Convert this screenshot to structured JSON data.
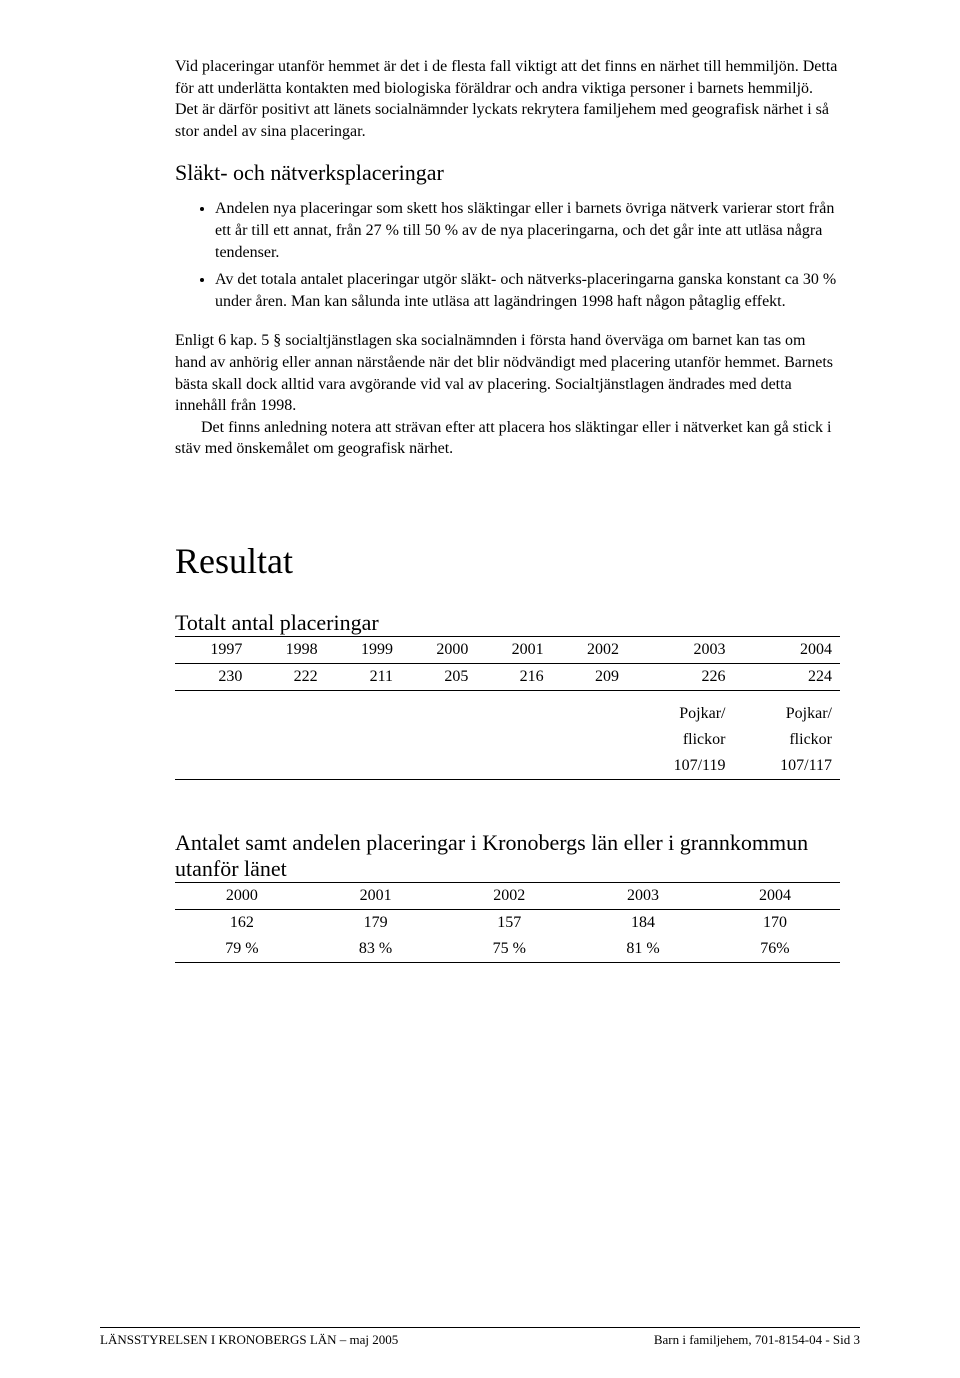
{
  "intro_paragraph": "Vid placeringar utanför hemmet är det i de flesta fall viktigt att det finns en närhet till hemmiljön. Detta för att underlätta kontakten med biologiska föräldrar och andra viktiga personer i barnets hemmiljö. Det är därför positivt att länets socialnämnder lyckats rekrytera familjehem med geografisk närhet i så stor andel av sina placeringar.",
  "section1_heading": "Släkt- och nätverksplaceringar",
  "bullets": [
    "Andelen nya placeringar som skett hos släktingar eller i barnets övriga nätverk varierar stort från ett år till ett annat, från 27 % till 50 % av de nya placeringarna, och det går inte att utläsa några tendenser.",
    "Av det totala antalet placeringar utgör släkt- och nätverks-placeringarna ganska konstant ca 30 % under åren. Man kan sålunda inte utläsa att lagändringen 1998 haft någon påtaglig effekt."
  ],
  "para2": "Enligt 6 kap. 5 § socialtjänstlagen ska socialnämnden i första hand överväga om barnet kan tas om hand av anhörig eller annan närstående när det blir nödvändigt med placering utanför hemmet. Barnets bästa skall dock alltid vara avgörande vid val av placering. Socialtjänstlagen ändrades med detta innehåll från 1998.",
  "para3": "Det finns anledning notera att strävan efter att placera hos släktingar eller i nätverket kan gå stick i stäv med önskemålet om geografisk närhet.",
  "main_heading": "Resultat",
  "table1_heading": "Totalt antal placeringar",
  "table1": {
    "years": [
      "1997",
      "1998",
      "1999",
      "2000",
      "2001",
      "2002",
      "2003",
      "2004"
    ],
    "values": [
      "230",
      "222",
      "211",
      "205",
      "216",
      "209",
      "226",
      "224"
    ],
    "sub_label1": "Pojkar/",
    "sub_label2": "flickor",
    "sub_val1": "107/119",
    "sub_val2": "107/117"
  },
  "table2_heading": "Antalet samt andelen placeringar i Kronobergs län eller i grannkommun utanför länet",
  "table2": {
    "years": [
      "2000",
      "2001",
      "2002",
      "2003",
      "2004"
    ],
    "row1": [
      "162",
      "179",
      "157",
      "184",
      "170"
    ],
    "row2": [
      "79 %",
      "83 %",
      "75 %",
      "81 %",
      "76%"
    ]
  },
  "footer_left": "LÄNSSTYRELSEN I KRONOBERGS LÄN – maj 2005",
  "footer_right": "Barn i familjehem, 701-8154-04 -  Sid 3"
}
